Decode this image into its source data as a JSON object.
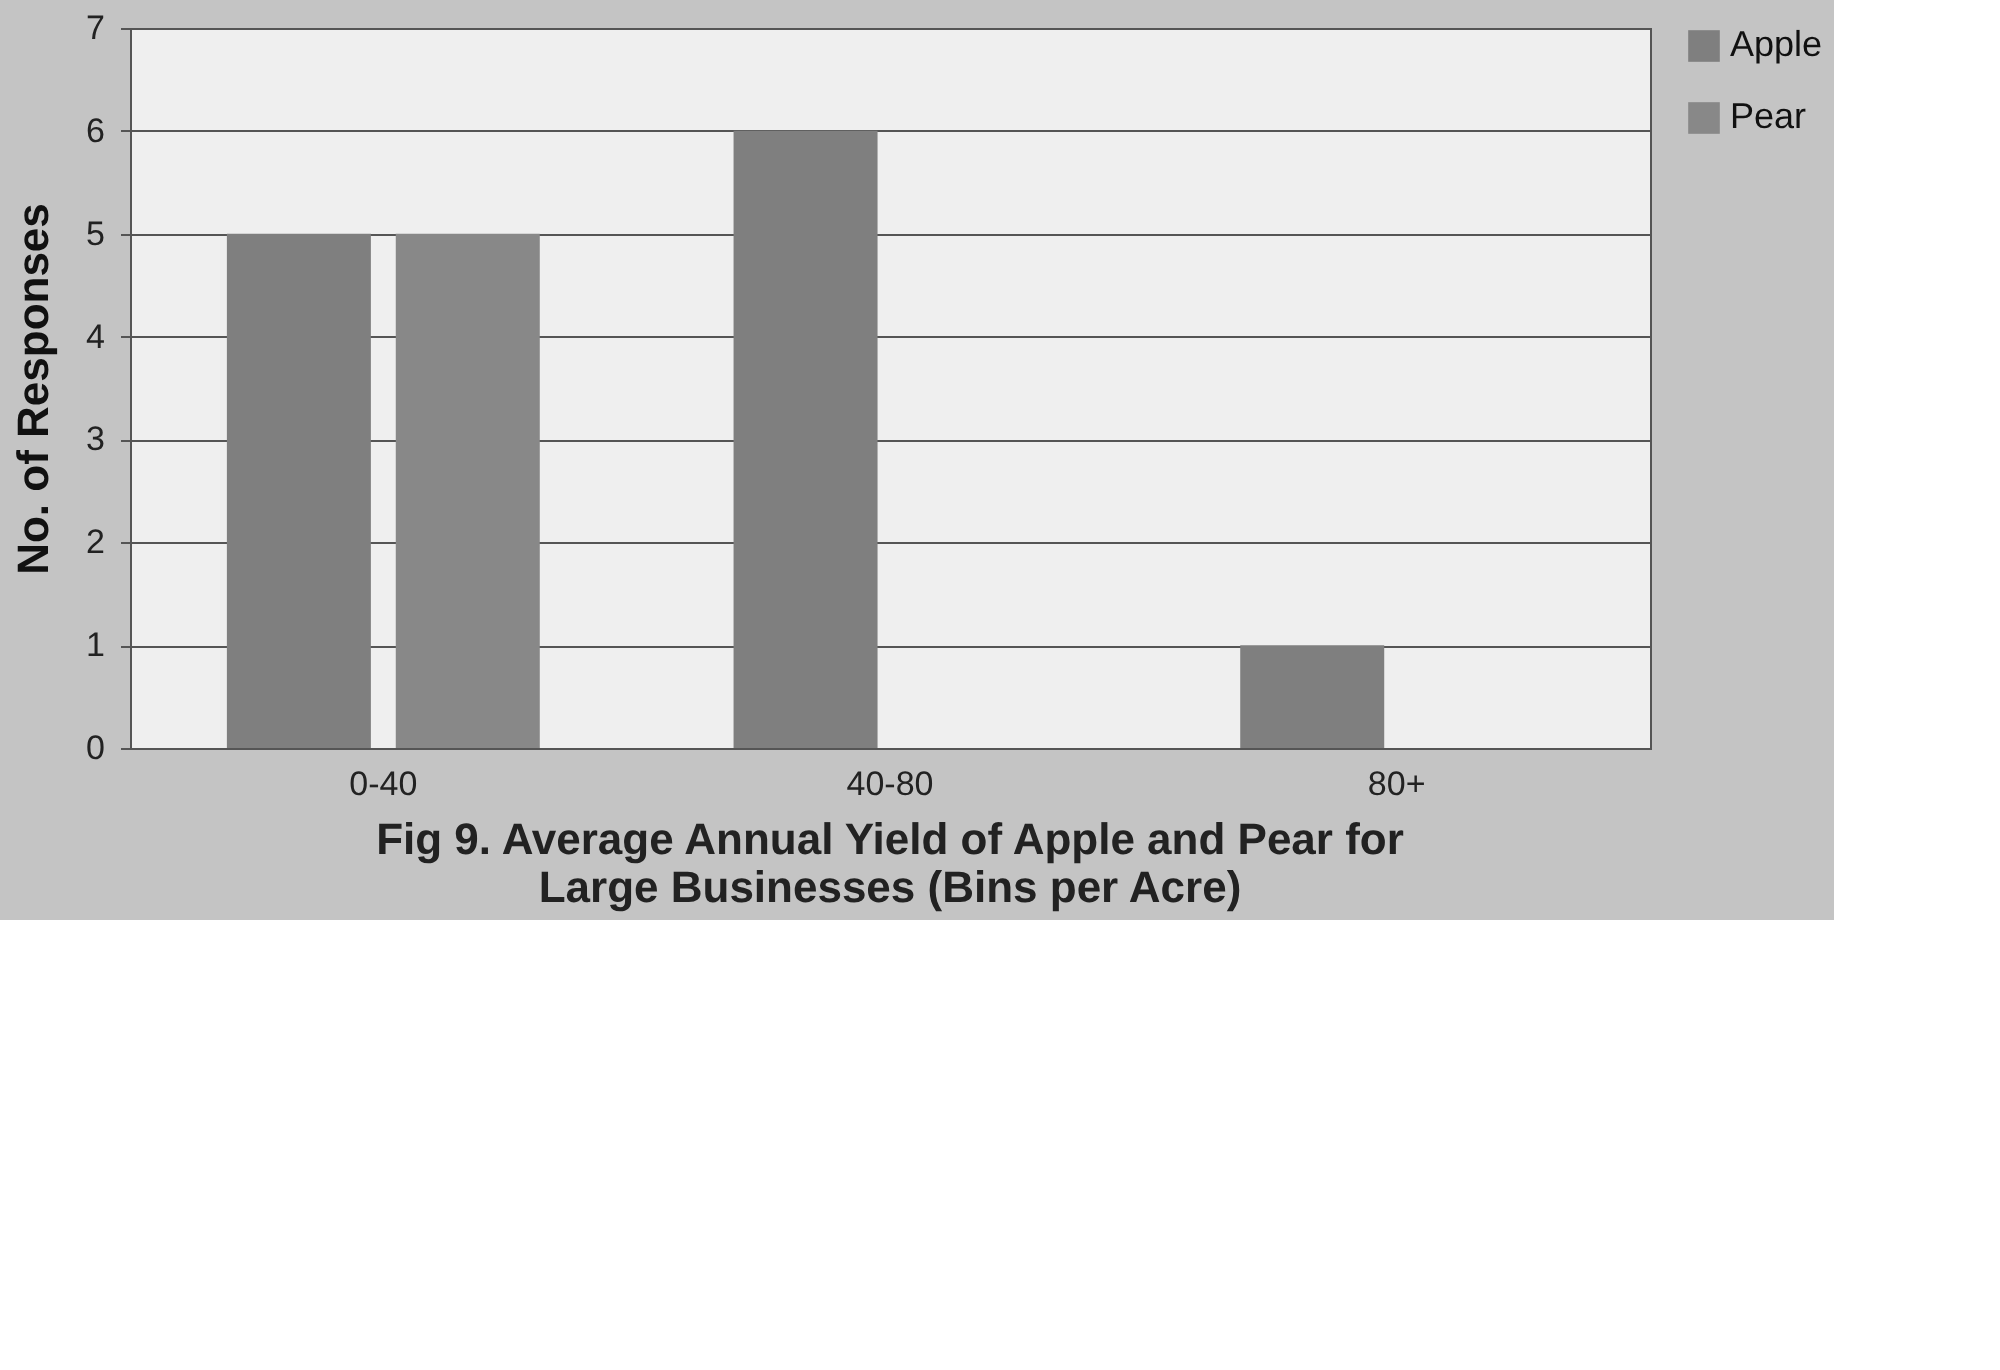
{
  "chart_data": {
    "type": "bar",
    "title": [
      "Fig 9.  Average Annual Yield of Apple and Pear for",
      "Large Businesses (Bins per Acre)"
    ],
    "ylabel": "No. of Responses",
    "categories": [
      "0-40",
      "40-80",
      "80+"
    ],
    "series": [
      {
        "name": "Apple",
        "color": "#7f7f7f",
        "values": [
          5,
          6,
          1
        ]
      },
      {
        "name": "Pear",
        "color": "#888888",
        "values": [
          5,
          0,
          0
        ]
      }
    ],
    "ylim": [
      0,
      7
    ],
    "yticks": [
      0,
      1,
      2,
      3,
      4,
      5,
      6,
      7
    ],
    "grid": "y",
    "legend": "right"
  }
}
